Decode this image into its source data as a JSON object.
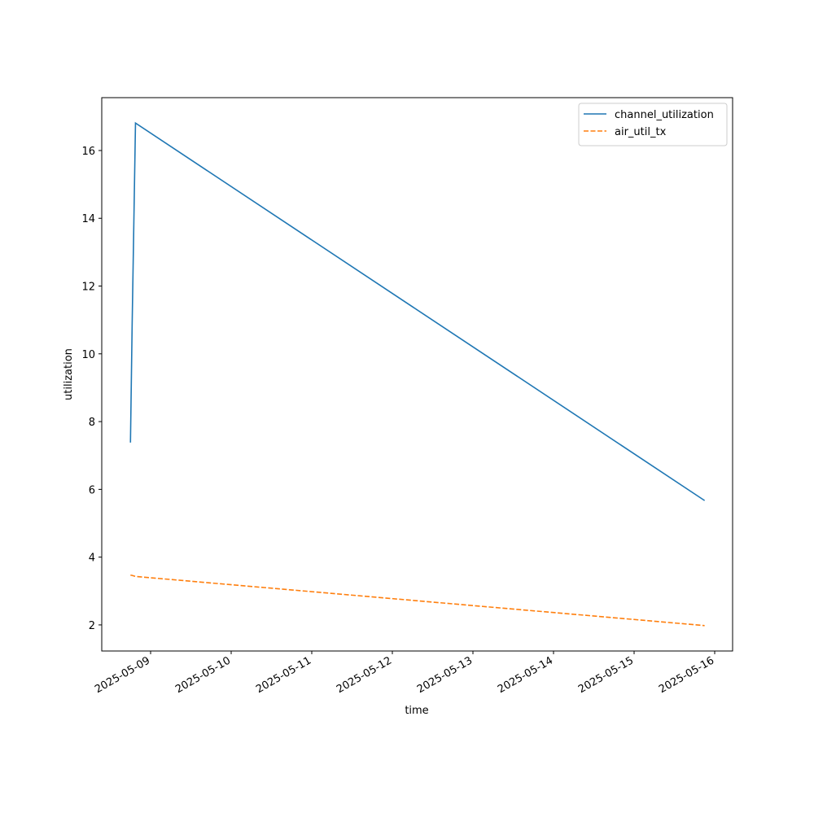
{
  "chart_data": {
    "type": "line",
    "x_label": "time",
    "y_label": "utilization",
    "x": [
      "2025-05-08 18:00",
      "2025-05-08 18:30",
      "2025-05-08 19:30",
      "2025-05-15 21:00"
    ],
    "series": [
      {
        "name": "channel_utilization",
        "color": "#1f77b4",
        "dash": false,
        "values": [
          7.38,
          10.84,
          16.81,
          5.67
        ]
      },
      {
        "name": "air_util_tx",
        "color": "#ff7f0e",
        "dash": true,
        "values": [
          3.47,
          3.46,
          3.43,
          1.98
        ]
      }
    ],
    "xlim": [
      "2025-05-08 09:27",
      "2025-05-16 05:20"
    ],
    "xticks": [
      "2025-05-09",
      "2025-05-10",
      "2025-05-11",
      "2025-05-12",
      "2025-05-13",
      "2025-05-14",
      "2025-05-15",
      "2025-05-16"
    ],
    "ylim": [
      1.23,
      17.56
    ],
    "yticks": [
      2,
      4,
      6,
      8,
      10,
      12,
      14,
      16
    ],
    "grid": false,
    "legend": "upper right"
  }
}
